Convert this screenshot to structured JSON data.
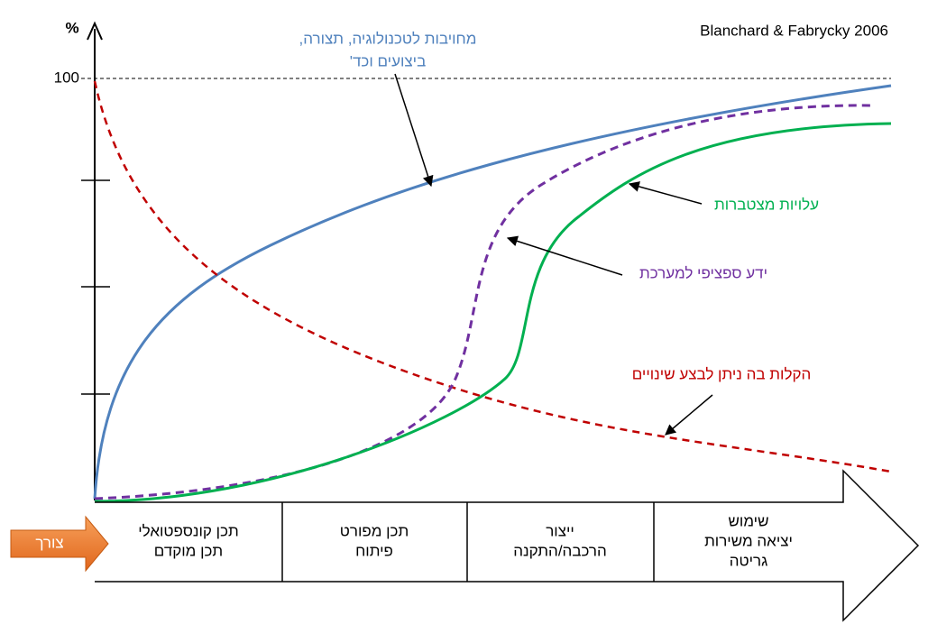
{
  "source": "Blanchard & Fabrycky 2006",
  "y_axis_label": "%",
  "y_tick": "100",
  "curve_labels": {
    "commitment": [
      "מחויבות לטכנולוגיה, תצורה,",
      "ביצועים וכד'"
    ],
    "costs": "עלויות מצטברות",
    "knowledge": "ידע ספציפי למערכת",
    "ease_of_change": "הקלות בה ניתן לבצע שינויים"
  },
  "need": "צורך",
  "phases": [
    [
      "תכן קונספטואלי",
      "תכן מוקדם"
    ],
    [
      "תכן מפורט",
      "פיתוח"
    ],
    [
      "ייצור",
      "הרכבה/התקנה"
    ],
    [
      "שימוש",
      "יציאה משירות",
      "גריטה"
    ]
  ]
}
